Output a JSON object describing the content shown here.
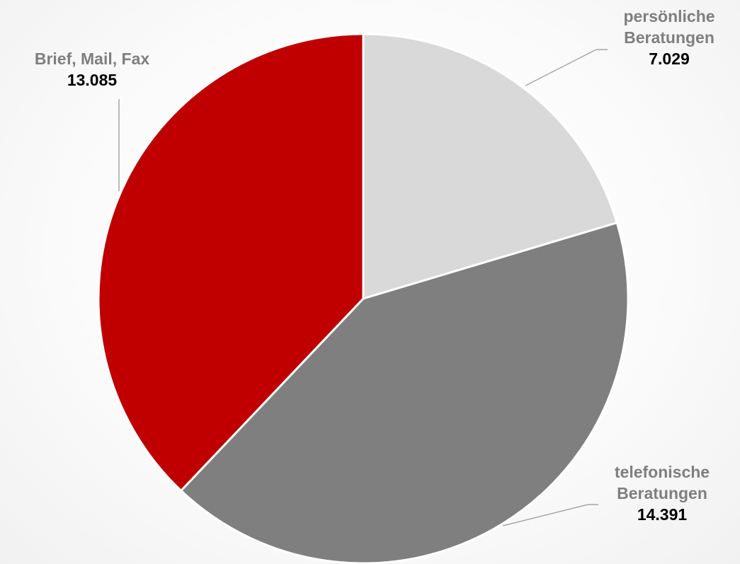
{
  "chart_data": {
    "type": "pie",
    "categories": [
      "persönliche Beratungen",
      "telefonische Beratungen",
      "Brief, Mail, Fax"
    ],
    "values": [
      7029,
      14391,
      13085
    ],
    "value_labels": [
      "7.029",
      "14.391",
      "13.085"
    ],
    "label_lines": [
      [
        "persönliche",
        "Beratungen"
      ],
      [
        "telefonische",
        "Beratungen"
      ],
      [
        "Brief, Mail, Fax"
      ]
    ],
    "colors": [
      "#d9d9d9",
      "#7f7f7f",
      "#c00000"
    ],
    "title": "",
    "legend": "none"
  }
}
